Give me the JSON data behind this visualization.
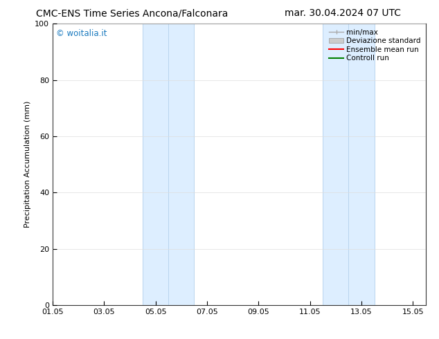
{
  "title_left": "CMC-ENS Time Series Ancona/Falconara",
  "title_right": "mar. 30.04.2024 07 UTC",
  "ylabel": "Precipitation Accumulation (mm)",
  "xlim": [
    0,
    14.5
  ],
  "ylim": [
    0,
    100
  ],
  "yticks": [
    0,
    20,
    40,
    60,
    80,
    100
  ],
  "xtick_labels": [
    "01.05",
    "03.05",
    "05.05",
    "07.05",
    "09.05",
    "11.05",
    "13.05",
    "15.05"
  ],
  "xtick_positions": [
    0,
    2,
    4,
    6,
    8,
    10,
    12,
    14
  ],
  "shaded_bands": [
    {
      "x_start": 3.5,
      "x_end": 5.5,
      "color": "#ddeeff"
    },
    {
      "x_start": 10.5,
      "x_end": 12.5,
      "color": "#ddeeff"
    }
  ],
  "band_vlines": [
    {
      "x": 3.5,
      "color": "#b8d4ee",
      "lw": 0.7
    },
    {
      "x": 4.5,
      "color": "#b8d4ee",
      "lw": 0.7
    },
    {
      "x": 5.5,
      "color": "#b8d4ee",
      "lw": 0.7
    },
    {
      "x": 10.5,
      "color": "#b8d4ee",
      "lw": 0.7
    },
    {
      "x": 11.5,
      "color": "#b8d4ee",
      "lw": 0.7
    },
    {
      "x": 12.5,
      "color": "#b8d4ee",
      "lw": 0.7
    }
  ],
  "watermark_text": "© woitalia.it",
  "watermark_color": "#1a7abf",
  "legend_entries": [
    {
      "label": "min/max",
      "color": "#aaaaaa",
      "style": "minmax"
    },
    {
      "label": "Deviazione standard",
      "color": "#cccccc",
      "style": "box"
    },
    {
      "label": "Ensemble mean run",
      "color": "red",
      "style": "line"
    },
    {
      "label": "Controll run",
      "color": "green",
      "style": "line"
    }
  ],
  "bg_color": "#ffffff",
  "title_fontsize": 10,
  "tick_fontsize": 8,
  "ylabel_fontsize": 8,
  "legend_fontsize": 7.5,
  "watermark_fontsize": 8.5
}
